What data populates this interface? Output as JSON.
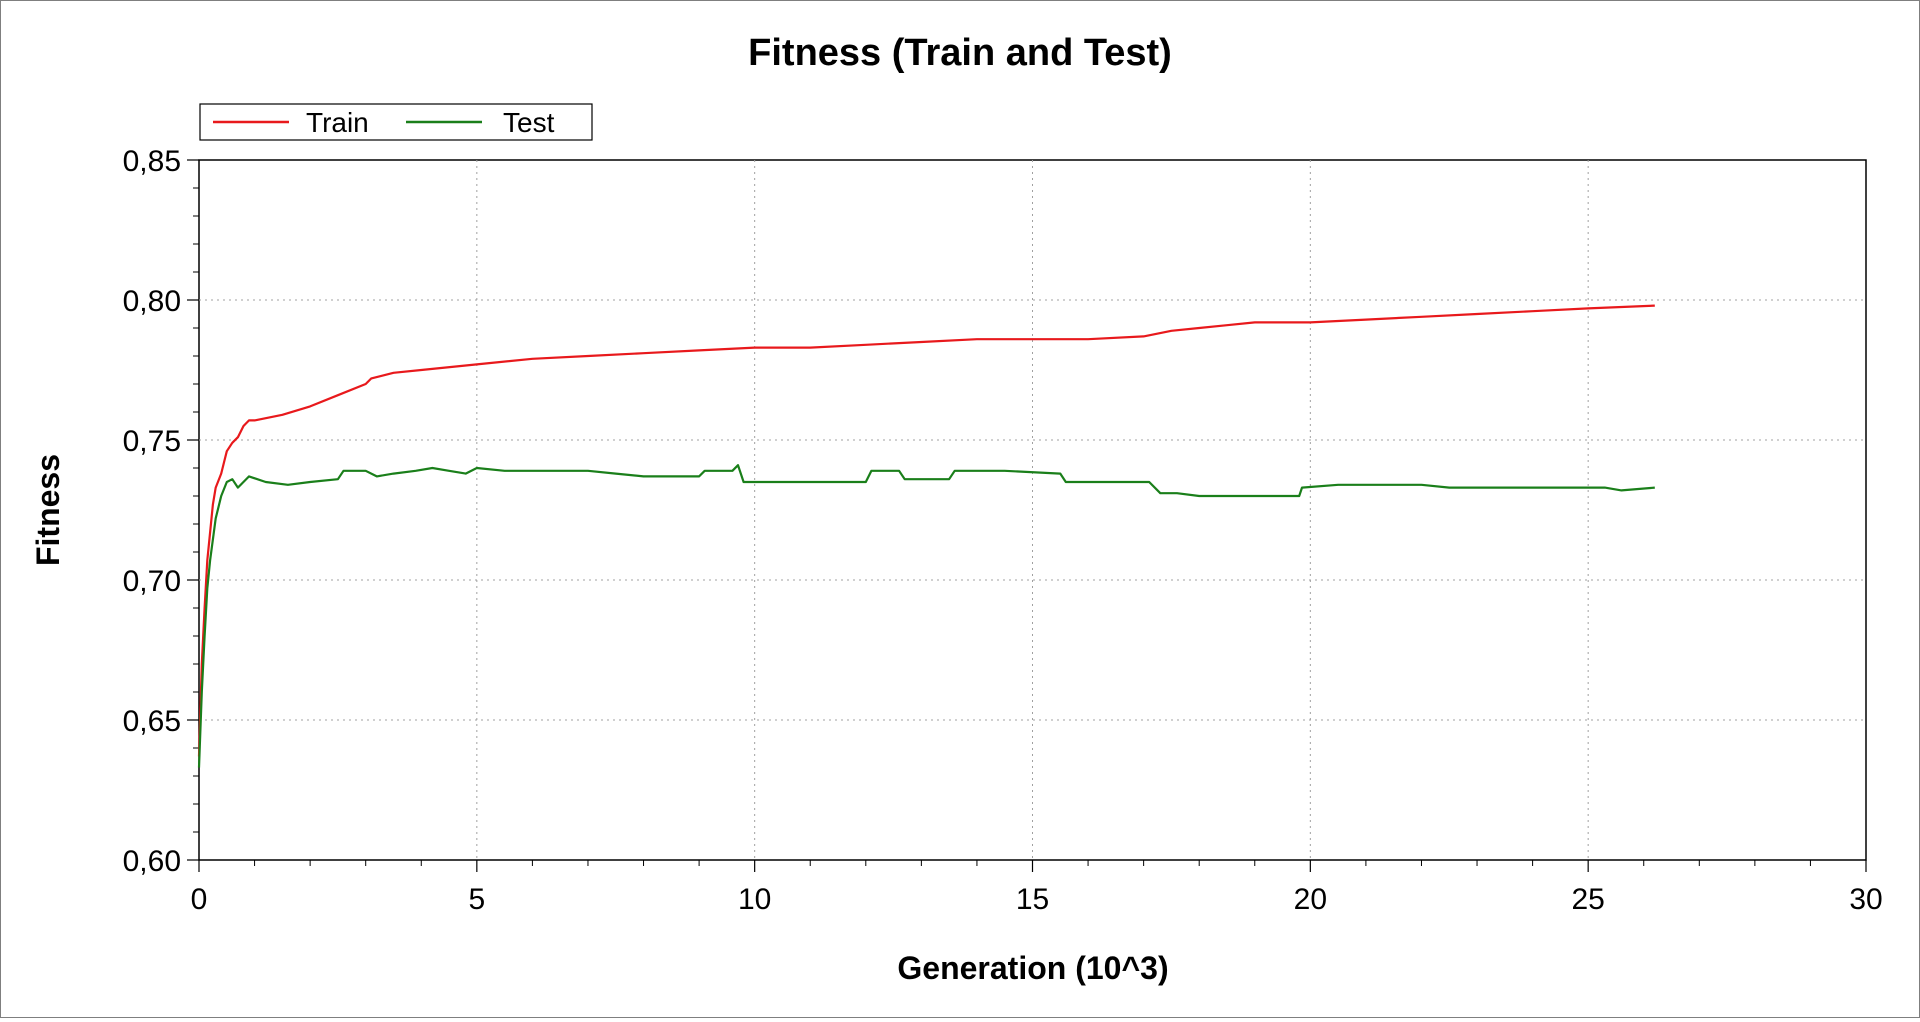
{
  "chart_data": {
    "type": "line",
    "title": "Fitness (Train and Test)",
    "xlabel": "Generation (10^3)",
    "ylabel": "Fitness",
    "xlim": [
      0,
      30
    ],
    "ylim": [
      0.6,
      0.85
    ],
    "x_ticks": [
      0,
      5,
      10,
      15,
      20,
      25,
      30
    ],
    "x_tick_labels": [
      "0",
      "5",
      "10",
      "15",
      "20",
      "25",
      "30"
    ],
    "y_ticks": [
      0.6,
      0.65,
      0.7,
      0.75,
      0.8,
      0.85
    ],
    "y_tick_labels": [
      "0,60",
      "0,65",
      "0,70",
      "0,75",
      "0,80",
      "0,85"
    ],
    "grid": true,
    "legend_placement": "top-left",
    "series": [
      {
        "name": "Train",
        "color": "#e8191c",
        "points": [
          [
            0.0,
            0.637
          ],
          [
            0.05,
            0.67
          ],
          [
            0.1,
            0.69
          ],
          [
            0.15,
            0.707
          ],
          [
            0.2,
            0.717
          ],
          [
            0.25,
            0.727
          ],
          [
            0.3,
            0.733
          ],
          [
            0.4,
            0.738
          ],
          [
            0.45,
            0.742
          ],
          [
            0.5,
            0.746
          ],
          [
            0.6,
            0.749
          ],
          [
            0.7,
            0.751
          ],
          [
            0.8,
            0.755
          ],
          [
            0.9,
            0.757
          ],
          [
            1.0,
            0.757
          ],
          [
            1.5,
            0.759
          ],
          [
            2.0,
            0.762
          ],
          [
            2.5,
            0.766
          ],
          [
            3.0,
            0.77
          ],
          [
            3.1,
            0.772
          ],
          [
            3.5,
            0.774
          ],
          [
            4.0,
            0.775
          ],
          [
            5.0,
            0.777
          ],
          [
            6.0,
            0.779
          ],
          [
            7.0,
            0.78
          ],
          [
            8.0,
            0.781
          ],
          [
            9.0,
            0.782
          ],
          [
            10.0,
            0.783
          ],
          [
            11.0,
            0.783
          ],
          [
            12.0,
            0.784
          ],
          [
            13.0,
            0.785
          ],
          [
            14.0,
            0.786
          ],
          [
            15.0,
            0.786
          ],
          [
            16.0,
            0.786
          ],
          [
            17.0,
            0.787
          ],
          [
            17.5,
            0.789
          ],
          [
            18.0,
            0.79
          ],
          [
            18.5,
            0.791
          ],
          [
            19.0,
            0.792
          ],
          [
            20.0,
            0.792
          ],
          [
            21.0,
            0.793
          ],
          [
            22.0,
            0.794
          ],
          [
            23.0,
            0.795
          ],
          [
            24.0,
            0.796
          ],
          [
            25.0,
            0.797
          ],
          [
            26.2,
            0.798
          ]
        ]
      },
      {
        "name": "Test",
        "color": "#1a7f1a",
        "points": [
          [
            0.0,
            0.633
          ],
          [
            0.05,
            0.66
          ],
          [
            0.1,
            0.68
          ],
          [
            0.15,
            0.697
          ],
          [
            0.2,
            0.707
          ],
          [
            0.3,
            0.722
          ],
          [
            0.4,
            0.73
          ],
          [
            0.5,
            0.735
          ],
          [
            0.6,
            0.736
          ],
          [
            0.7,
            0.733
          ],
          [
            0.9,
            0.737
          ],
          [
            1.2,
            0.735
          ],
          [
            1.6,
            0.734
          ],
          [
            2.0,
            0.735
          ],
          [
            2.5,
            0.736
          ],
          [
            2.6,
            0.739
          ],
          [
            3.0,
            0.739
          ],
          [
            3.2,
            0.737
          ],
          [
            3.5,
            0.738
          ],
          [
            3.9,
            0.739
          ],
          [
            4.2,
            0.74
          ],
          [
            4.5,
            0.739
          ],
          [
            4.8,
            0.738
          ],
          [
            5.0,
            0.74
          ],
          [
            5.5,
            0.739
          ],
          [
            6.0,
            0.739
          ],
          [
            6.5,
            0.739
          ],
          [
            7.0,
            0.739
          ],
          [
            7.5,
            0.738
          ],
          [
            8.0,
            0.737
          ],
          [
            8.5,
            0.737
          ],
          [
            9.0,
            0.737
          ],
          [
            9.1,
            0.739
          ],
          [
            9.6,
            0.739
          ],
          [
            9.7,
            0.741
          ],
          [
            9.8,
            0.735
          ],
          [
            10.5,
            0.735
          ],
          [
            11.5,
            0.735
          ],
          [
            12.0,
            0.735
          ],
          [
            12.1,
            0.739
          ],
          [
            12.6,
            0.739
          ],
          [
            12.7,
            0.736
          ],
          [
            13.5,
            0.736
          ],
          [
            13.6,
            0.739
          ],
          [
            14.5,
            0.739
          ],
          [
            15.5,
            0.738
          ],
          [
            15.6,
            0.735
          ],
          [
            16.5,
            0.735
          ],
          [
            17.1,
            0.735
          ],
          [
            17.3,
            0.731
          ],
          [
            17.6,
            0.731
          ],
          [
            18.0,
            0.73
          ],
          [
            18.5,
            0.73
          ],
          [
            19.0,
            0.73
          ],
          [
            19.8,
            0.73
          ],
          [
            19.85,
            0.733
          ],
          [
            20.5,
            0.734
          ],
          [
            21.5,
            0.734
          ],
          [
            22.0,
            0.734
          ],
          [
            22.5,
            0.733
          ],
          [
            23.5,
            0.733
          ],
          [
            24.5,
            0.733
          ],
          [
            25.3,
            0.733
          ],
          [
            25.6,
            0.732
          ],
          [
            26.2,
            0.733
          ]
        ]
      }
    ]
  }
}
